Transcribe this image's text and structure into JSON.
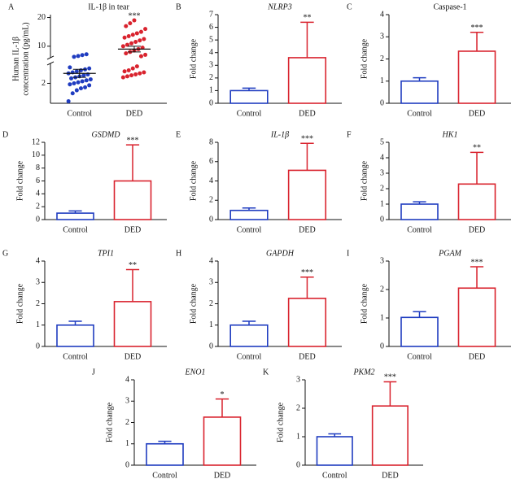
{
  "chart_data": [
    {
      "type": "scatter",
      "label": "A",
      "title": "IL-1β in tear",
      "ylabel": [
        "Human IL-1β",
        "concentration (pg/mL)"
      ],
      "categories": [
        "Control",
        "DED"
      ],
      "colors": [
        "#1f3cc0",
        "#d9232e"
      ],
      "values": [
        [
          0.2,
          1.0,
          1.3,
          1.5,
          1.6,
          1.8,
          1.9,
          2.0,
          2.1,
          2.2,
          2.3,
          2.4,
          2.5,
          2.6,
          2.7,
          2.8,
          2.9,
          3.0,
          3.1,
          3.2,
          3.3,
          3.4,
          3.5,
          3.6,
          6.3,
          6.6,
          6.9,
          7.2
        ],
        [
          2.6,
          2.7,
          2.8,
          2.9,
          3.0,
          3.1,
          3.2,
          3.3,
          3.5,
          3.7,
          6.5,
          7,
          7.5,
          8,
          8.5,
          9,
          9.5,
          10,
          10.5,
          11,
          11.5,
          12,
          12.5,
          13,
          13.5,
          14,
          14.5,
          15,
          16,
          17,
          18,
          19
        ]
      ],
      "means": [
        3.0,
        9.0
      ],
      "errors": [
        0.4,
        1.0
      ],
      "annotation": "***",
      "ylim": [
        0,
        21
      ],
      "ybreak": [
        4,
        6
      ],
      "yticks": [
        2,
        10,
        20
      ]
    },
    {
      "type": "bar",
      "label": "B",
      "title": "NLRP3",
      "italic": true,
      "ylabel": "Fold change",
      "categories": [
        "Control",
        "DED"
      ],
      "colors": [
        "#1f3cc0",
        "#d9232e"
      ],
      "values": [
        1.0,
        3.6
      ],
      "errors": [
        0.2,
        2.8
      ],
      "annotation": "**",
      "ylim": [
        0,
        7
      ],
      "yticks": [
        0,
        1,
        2,
        3,
        4,
        5,
        6,
        7
      ]
    },
    {
      "type": "bar",
      "label": "C",
      "title": "Caspase-1",
      "italic": false,
      "ylabel": "Fold change",
      "categories": [
        "Control",
        "DED"
      ],
      "colors": [
        "#1f3cc0",
        "#d9232e"
      ],
      "values": [
        1.0,
        2.35
      ],
      "errors": [
        0.15,
        0.85
      ],
      "annotation": "***",
      "ylim": [
        0,
        4
      ],
      "yticks": [
        0,
        1,
        2,
        3,
        4
      ]
    },
    {
      "type": "bar",
      "label": "D",
      "title": "GSDMD",
      "italic": true,
      "ylabel": "Fold change",
      "categories": [
        "Control",
        "DED"
      ],
      "colors": [
        "#1f3cc0",
        "#d9232e"
      ],
      "values": [
        1.0,
        6.0
      ],
      "errors": [
        0.35,
        5.6
      ],
      "annotation": "***",
      "ylim": [
        0,
        12
      ],
      "yticks": [
        0,
        2,
        4,
        6,
        8,
        10,
        12
      ]
    },
    {
      "type": "bar",
      "label": "E",
      "title": "IL-1β",
      "italic": true,
      "ylabel": "Fold change",
      "categories": [
        "Control",
        "DED"
      ],
      "colors": [
        "#1f3cc0",
        "#d9232e"
      ],
      "values": [
        0.95,
        5.1
      ],
      "errors": [
        0.25,
        2.8
      ],
      "annotation": "***",
      "ylim": [
        0,
        8
      ],
      "yticks": [
        0,
        2,
        4,
        6,
        8
      ]
    },
    {
      "type": "bar",
      "label": "F",
      "title": "HK1",
      "italic": true,
      "ylabel": "Fold change",
      "categories": [
        "Control",
        "DED"
      ],
      "colors": [
        "#1f3cc0",
        "#d9232e"
      ],
      "values": [
        1.0,
        2.3
      ],
      "errors": [
        0.15,
        2.05
      ],
      "annotation": "**",
      "ylim": [
        0,
        5
      ],
      "yticks": [
        0,
        1,
        2,
        3,
        4,
        5
      ]
    },
    {
      "type": "bar",
      "label": "G",
      "title": "TPI1",
      "italic": true,
      "ylabel": "Fold change",
      "categories": [
        "Control",
        "DED"
      ],
      "colors": [
        "#1f3cc0",
        "#d9232e"
      ],
      "values": [
        1.0,
        2.1
      ],
      "errors": [
        0.18,
        1.5
      ],
      "annotation": "**",
      "ylim": [
        0,
        4
      ],
      "yticks": [
        0,
        1,
        2,
        3,
        4
      ]
    },
    {
      "type": "bar",
      "label": "H",
      "title": "GAPDH",
      "italic": true,
      "ylabel": "Fold change",
      "categories": [
        "Control",
        "DED"
      ],
      "colors": [
        "#1f3cc0",
        "#d9232e"
      ],
      "values": [
        1.0,
        2.25
      ],
      "errors": [
        0.18,
        1.0
      ],
      "annotation": "***",
      "ylim": [
        0,
        4
      ],
      "yticks": [
        0,
        1,
        2,
        3,
        4
      ]
    },
    {
      "type": "bar",
      "label": "I",
      "title": "PGAM",
      "italic": true,
      "ylabel": "Fold change",
      "categories": [
        "Control",
        "DED"
      ],
      "colors": [
        "#1f3cc0",
        "#d9232e"
      ],
      "values": [
        1.02,
        2.05
      ],
      "errors": [
        0.2,
        0.75
      ],
      "annotation": "***",
      "ylim": [
        0,
        3
      ],
      "yticks": [
        0,
        1,
        2,
        3
      ]
    },
    {
      "type": "bar",
      "label": "J",
      "title": "ENO1",
      "italic": true,
      "ylabel": "Fold change",
      "categories": [
        "Control",
        "DED"
      ],
      "colors": [
        "#1f3cc0",
        "#d9232e"
      ],
      "values": [
        1.0,
        2.25
      ],
      "errors": [
        0.12,
        0.85
      ],
      "annotation": "*",
      "ylim": [
        0,
        4
      ],
      "yticks": [
        0,
        1,
        2,
        3,
        4
      ]
    },
    {
      "type": "bar",
      "label": "K",
      "title": "PKM2",
      "italic": true,
      "ylabel": "Fold change",
      "categories": [
        "Control",
        "DED"
      ],
      "colors": [
        "#1f3cc0",
        "#d9232e"
      ],
      "values": [
        1.0,
        2.08
      ],
      "errors": [
        0.1,
        0.85
      ],
      "annotation": "***",
      "ylim": [
        0,
        3
      ],
      "yticks": [
        0,
        1,
        2,
        3
      ]
    }
  ]
}
